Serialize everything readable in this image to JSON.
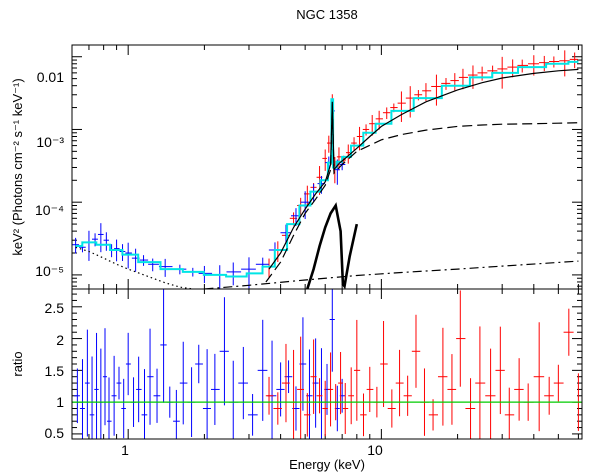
{
  "chart_data": {
    "type": "line",
    "title": "NGC 1358",
    "xlabel": "Energy (keV)",
    "x_scale": "log",
    "xlim": [
      0.6,
      62
    ],
    "x_tick_labels": [
      "1",
      "10"
    ],
    "panels": [
      {
        "name": "spectrum",
        "ylabel": "keV² (Photons cm⁻² s⁻¹ keV⁻¹)",
        "y_scale": "log",
        "ylim": [
          6.4e-06,
          0.0145
        ],
        "y_tick_labels": [
          "10⁻⁵",
          "10⁻⁴",
          "10⁻³",
          "0.01"
        ],
        "series": [
          {
            "color": "#ff0000",
            "style": "data crosses",
            "x": [
              3.6,
              3.9,
              4.2,
              4.5,
              4.8,
              5.1,
              5.4,
              5.7,
              6.0,
              6.2,
              6.4,
              6.55,
              6.8,
              7.1,
              7.4,
              7.8,
              8.2,
              8.7,
              9.2,
              9.8,
              10.5,
              11.2,
              12.0,
              13.0,
              14.0,
              15.0,
              16.5,
              18.0,
              19.5,
              21.0,
              23.0,
              25.0,
              27.5,
              30.0,
              33.0,
              36.0,
              40.0,
              44.0,
              48.0,
              53.0,
              58.0
            ],
            "y": [
              1.3e-05,
              2.2e-05,
              3.5e-05,
              6e-05,
              9e-05,
              0.00013,
              0.00016,
              0.00022,
              0.0004,
              0.00065,
              0.0025,
              0.0003,
              0.00042,
              0.00038,
              0.00048,
              0.00065,
              0.0008,
              0.001,
              0.0012,
              0.0014,
              0.0017,
              0.002,
              0.0023,
              0.0027,
              0.003,
              0.0034,
              0.0039,
              0.0043,
              0.0047,
              0.0052,
              0.0056,
              0.006,
              0.0064,
              0.0068,
              0.0072,
              0.0076,
              0.008,
              0.0083,
              0.0086,
              0.0088,
              0.0092
            ]
          },
          {
            "color": "#0000ff",
            "style": "data crosses",
            "x": [
              0.62,
              0.66,
              0.7,
              0.74,
              0.78,
              0.82,
              0.86,
              0.9,
              0.95,
              1.0,
              1.07,
              1.15,
              1.25,
              1.4,
              1.6,
              1.8,
              2.0,
              2.3,
              2.6,
              3.0,
              3.4,
              3.8,
              4.2,
              4.6,
              5.0,
              5.4,
              5.8,
              6.2,
              6.4,
              6.7,
              7.0
            ],
            "y": [
              2.6e-05,
              2.4e-05,
              2.8e-05,
              3.1e-05,
              3.6e-05,
              3e-05,
              2.2e-05,
              2.3e-05,
              2.1e-05,
              2e-05,
              1.7e-05,
              1.6e-05,
              1.4e-05,
              1.3e-05,
              1.2e-05,
              1.1e-05,
              1.05e-05,
              1e-05,
              1.1e-05,
              1.2e-05,
              1.4e-05,
              2.2e-05,
              3.8e-05,
              6.5e-05,
              0.0001,
              0.00014,
              0.00018,
              0.00035,
              0.0018,
              0.00028,
              0.00033
            ]
          },
          {
            "color": "#00e5e5",
            "style": "total model, step",
            "x": [
              0.62,
              0.7,
              0.8,
              0.9,
              1.0,
              1.2,
              1.5,
              1.8,
              2.2,
              2.7,
              3.2,
              3.6,
              4.0,
              4.5,
              5.0,
              5.5,
              6.0,
              6.3,
              6.4,
              6.5,
              6.8,
              7.2,
              8.0,
              9.0,
              10.0,
              12.0,
              15.0,
              20.0,
              25.0,
              30.0,
              40.0,
              50.0,
              60.0
            ],
            "y": [
              2.5e-05,
              2.8e-05,
              2.6e-05,
              2.2e-05,
              1.9e-05,
              1.5e-05,
              1.2e-05,
              1.1e-05,
              1e-05,
              9.5e-06,
              1.05e-05,
              1.3e-05,
              2.2e-05,
              5e-05,
              9e-05,
              0.00014,
              0.0002,
              0.00035,
              0.0026,
              0.0003,
              0.00036,
              0.00042,
              0.0006,
              0.0009,
              0.0012,
              0.0018,
              0.0027,
              0.004,
              0.0052,
              0.006,
              0.0072,
              0.008,
              0.0085
            ]
          },
          {
            "color": "#000000",
            "style": "total model, solid",
            "x": [
              3.6,
              4.0,
              4.5,
              5.0,
              5.5,
              6.0,
              6.3,
              6.4,
              6.5,
              6.8,
              7.2,
              8.0,
              9.0,
              10.0,
              12.0,
              15.0,
              20.0,
              25.0,
              30.0,
              40.0,
              50.0,
              60.0
            ],
            "y": [
              1.2e-05,
              2e-05,
              4.5e-05,
              8e-05,
              0.00013,
              0.00019,
              0.00033,
              0.0024,
              0.00028,
              0.00034,
              0.0004,
              0.00055,
              0.0008,
              0.0011,
              0.0016,
              0.0024,
              0.0035,
              0.0044,
              0.0051,
              0.0059,
              0.0064,
              0.0067
            ]
          },
          {
            "color": "#000000",
            "style": "component, long dash",
            "x": [
              3.5,
              4.0,
              4.5,
              5.0,
              5.5,
              6.0,
              6.3,
              6.4,
              6.5,
              7.0,
              8.0,
              10.0,
              12.0,
              15.0,
              20.0,
              25.0,
              30.0,
              40.0,
              50.0,
              60.0
            ],
            "y": [
              8e-06,
              1.5e-05,
              3.5e-05,
              7e-05,
              0.00011,
              0.00017,
              0.00028,
              0.0022,
              0.00025,
              0.00033,
              0.0005,
              0.00072,
              0.00085,
              0.00098,
              0.0011,
              0.00115,
              0.00118,
              0.0012,
              0.00122,
              0.00124
            ]
          },
          {
            "color": "#000000",
            "style": "component, thick solid",
            "x": [
              5.1,
              5.4,
              5.7,
              6.0,
              6.3,
              6.6,
              6.9,
              7.05,
              7.15,
              7.5,
              8.0
            ],
            "y": [
              6.4e-06,
              1.2e-05,
              2.5e-05,
              4.5e-05,
              7e-05,
              9e-05,
              4e-05,
              7.5e-06,
              7e-06,
              1.8e-05,
              5e-05
            ]
          },
          {
            "color": "#000000",
            "style": "component, dot-dash",
            "x": [
              2.0,
              3.0,
              5.0,
              8.0,
              12.0,
              20.0,
              30.0,
              45.0,
              60.0
            ],
            "y": [
              6.4e-06,
              7.2e-06,
              8.5e-06,
              9.8e-06,
              1.08e-05,
              1.2e-05,
              1.32e-05,
              1.45e-05,
              1.55e-05
            ]
          },
          {
            "color": "#000000",
            "style": "component, dotted",
            "x": [
              0.62,
              0.7,
              0.8,
              0.9,
              1.0,
              1.2,
              1.4,
              1.6,
              1.8
            ],
            "y": [
              2.4e-05,
              2.1e-05,
              1.7e-05,
              1.4e-05,
              1.2e-05,
              9.5e-06,
              7.8e-06,
              6.8e-06,
              6.4e-06
            ]
          }
        ]
      },
      {
        "name": "ratio",
        "ylabel": "ratio",
        "y_scale": "linear",
        "ylim": [
          0.42,
          2.78
        ],
        "y_tick_labels": [
          "0.5",
          "1",
          "1.5",
          "2",
          "2.5"
        ],
        "reference_line": {
          "y": 1,
          "color": "#00cc00"
        },
        "series": [
          {
            "color": "#0000ff",
            "style": "data crosses",
            "x": [
              0.63,
              0.66,
              0.69,
              0.72,
              0.75,
              0.78,
              0.81,
              0.84,
              0.88,
              0.92,
              0.96,
              1.0,
              1.05,
              1.1,
              1.16,
              1.22,
              1.3,
              1.38,
              1.46,
              1.55,
              1.65,
              1.78,
              1.9,
              2.05,
              2.2,
              2.4,
              2.6,
              2.85,
              3.1,
              3.4,
              3.7,
              4.0,
              4.3,
              4.6,
              4.9,
              5.2,
              5.5,
              5.8,
              6.1,
              6.4,
              6.7,
              7.0
            ],
            "y": [
              1.1,
              0.9,
              1.3,
              0.8,
              1.2,
              1.0,
              1.4,
              0.7,
              1.1,
              1.3,
              0.9,
              1.6,
              1.0,
              1.2,
              0.8,
              1.4,
              1.1,
              1.9,
              1.0,
              0.7,
              1.3,
              1.0,
              1.6,
              0.9,
              1.2,
              1.8,
              1.0,
              1.3,
              0.8,
              1.5,
              1.1,
              1.2,
              1.4,
              0.9,
              1.6,
              1.1,
              1.3,
              1.0,
              1.2,
              2.3,
              0.9,
              1.1
            ]
          },
          {
            "color": "#ff0000",
            "style": "data crosses",
            "x": [
              3.6,
              3.9,
              4.2,
              4.5,
              4.8,
              5.1,
              5.4,
              5.7,
              6.0,
              6.3,
              6.6,
              6.9,
              7.2,
              7.6,
              8.0,
              8.5,
              9.0,
              9.6,
              10.2,
              11.0,
              11.8,
              12.7,
              13.7,
              14.8,
              16.0,
              17.5,
              19.0,
              20.5,
              22.5,
              24.5,
              27.0,
              29.5,
              32.0,
              35.0,
              38.0,
              42.0,
              46.0,
              50.0,
              55.0,
              60.0
            ],
            "y": [
              1.1,
              0.9,
              1.3,
              1.0,
              1.2,
              0.8,
              1.4,
              1.1,
              0.9,
              1.2,
              1.0,
              1.3,
              0.9,
              1.1,
              1.5,
              0.8,
              1.2,
              1.0,
              1.6,
              0.9,
              1.3,
              1.1,
              1.8,
              1.0,
              0.8,
              1.4,
              1.2,
              2.0,
              0.9,
              1.3,
              1.1,
              1.5,
              0.8,
              1.2,
              1.0,
              1.4,
              1.1,
              1.3,
              2.1,
              1.0
            ]
          }
        ]
      }
    ]
  }
}
